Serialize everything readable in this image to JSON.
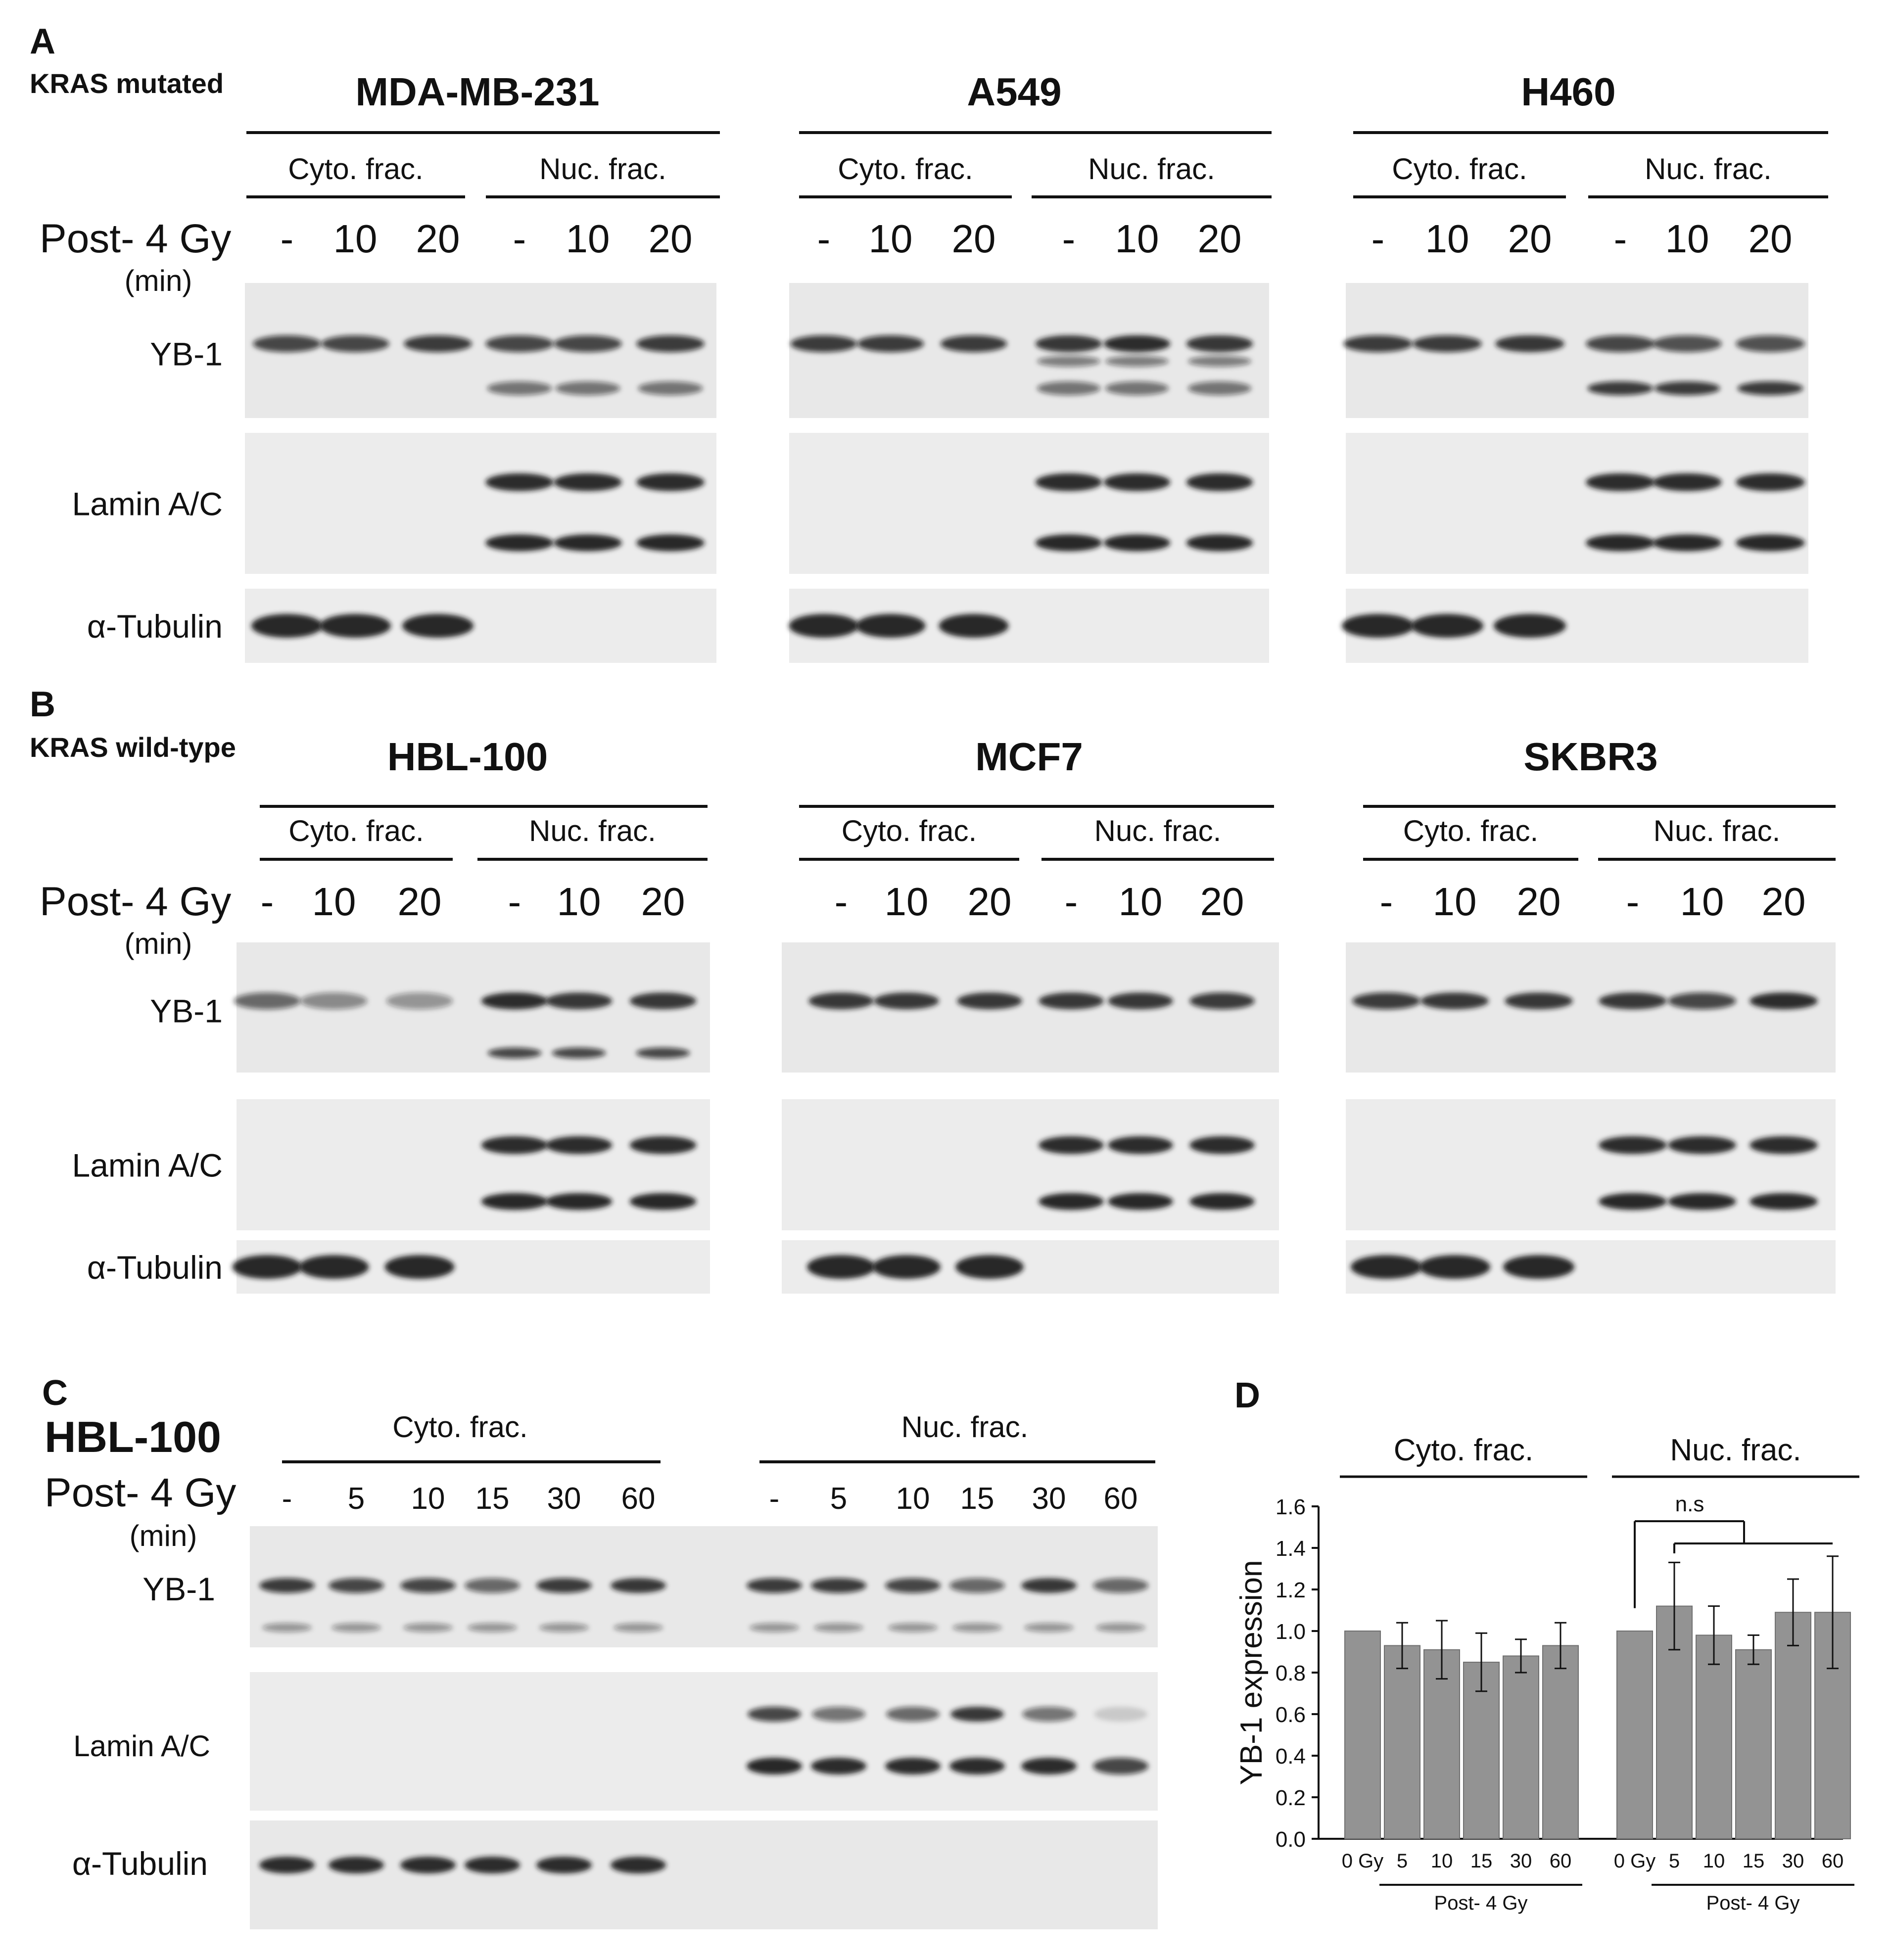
{
  "panel_a": {
    "label": "A",
    "group_label": "KRAS mutated",
    "cells": [
      {
        "name": "MDA-MB-231"
      },
      {
        "name": "A549"
      },
      {
        "name": "H460"
      }
    ]
  },
  "panel_b": {
    "label": "B",
    "group_label": "KRAS wild-type",
    "cells": [
      {
        "name": "HBL-100"
      },
      {
        "name": "MCF7"
      },
      {
        "name": "SKBR3"
      }
    ]
  },
  "fractions": {
    "cyto": "Cyto. frac.",
    "nuc": "Nuc. frac."
  },
  "treatment_label": "Post- 4 Gy",
  "unit_label": "(min)",
  "lanes_ab": [
    "-",
    "10",
    "20"
  ],
  "proteins": {
    "yb1": "YB-1",
    "lamin": "Lamin A/C",
    "tubulin": "α-Tubulin"
  },
  "panel_c": {
    "label": "C",
    "cell_line": "HBL-100",
    "lanes": [
      "-",
      "5",
      "10",
      "15",
      "30",
      "60"
    ]
  },
  "panel_d": {
    "label": "D",
    "significance": "n.s",
    "x_group_label": "Post- 4 Gy",
    "zero_label": "0 Gy",
    "ytick_labels": [
      "0.0",
      "0.2",
      "0.4",
      "0.6",
      "0.8",
      "1.0",
      "1.2",
      "1.4",
      "1.6"
    ]
  },
  "chart_data": {
    "type": "bar",
    "ylabel": "YB-1 expression",
    "ylim": [
      0,
      1.6
    ],
    "groups": [
      {
        "name": "Cyto. frac.",
        "categories": [
          "0 Gy",
          "5",
          "10",
          "15",
          "30",
          "60"
        ],
        "values": [
          1.0,
          0.93,
          0.91,
          0.85,
          0.88,
          0.93
        ],
        "errors": [
          0.0,
          0.11,
          0.14,
          0.14,
          0.08,
          0.11
        ]
      },
      {
        "name": "Nuc. frac.",
        "categories": [
          "0 Gy",
          "5",
          "10",
          "15",
          "30",
          "60"
        ],
        "values": [
          1.0,
          1.12,
          0.98,
          0.91,
          1.09,
          1.09
        ],
        "errors": [
          0.0,
          0.21,
          0.14,
          0.07,
          0.16,
          0.27
        ]
      }
    ],
    "bar_color": "#939393",
    "grid": false,
    "legend": "none"
  }
}
